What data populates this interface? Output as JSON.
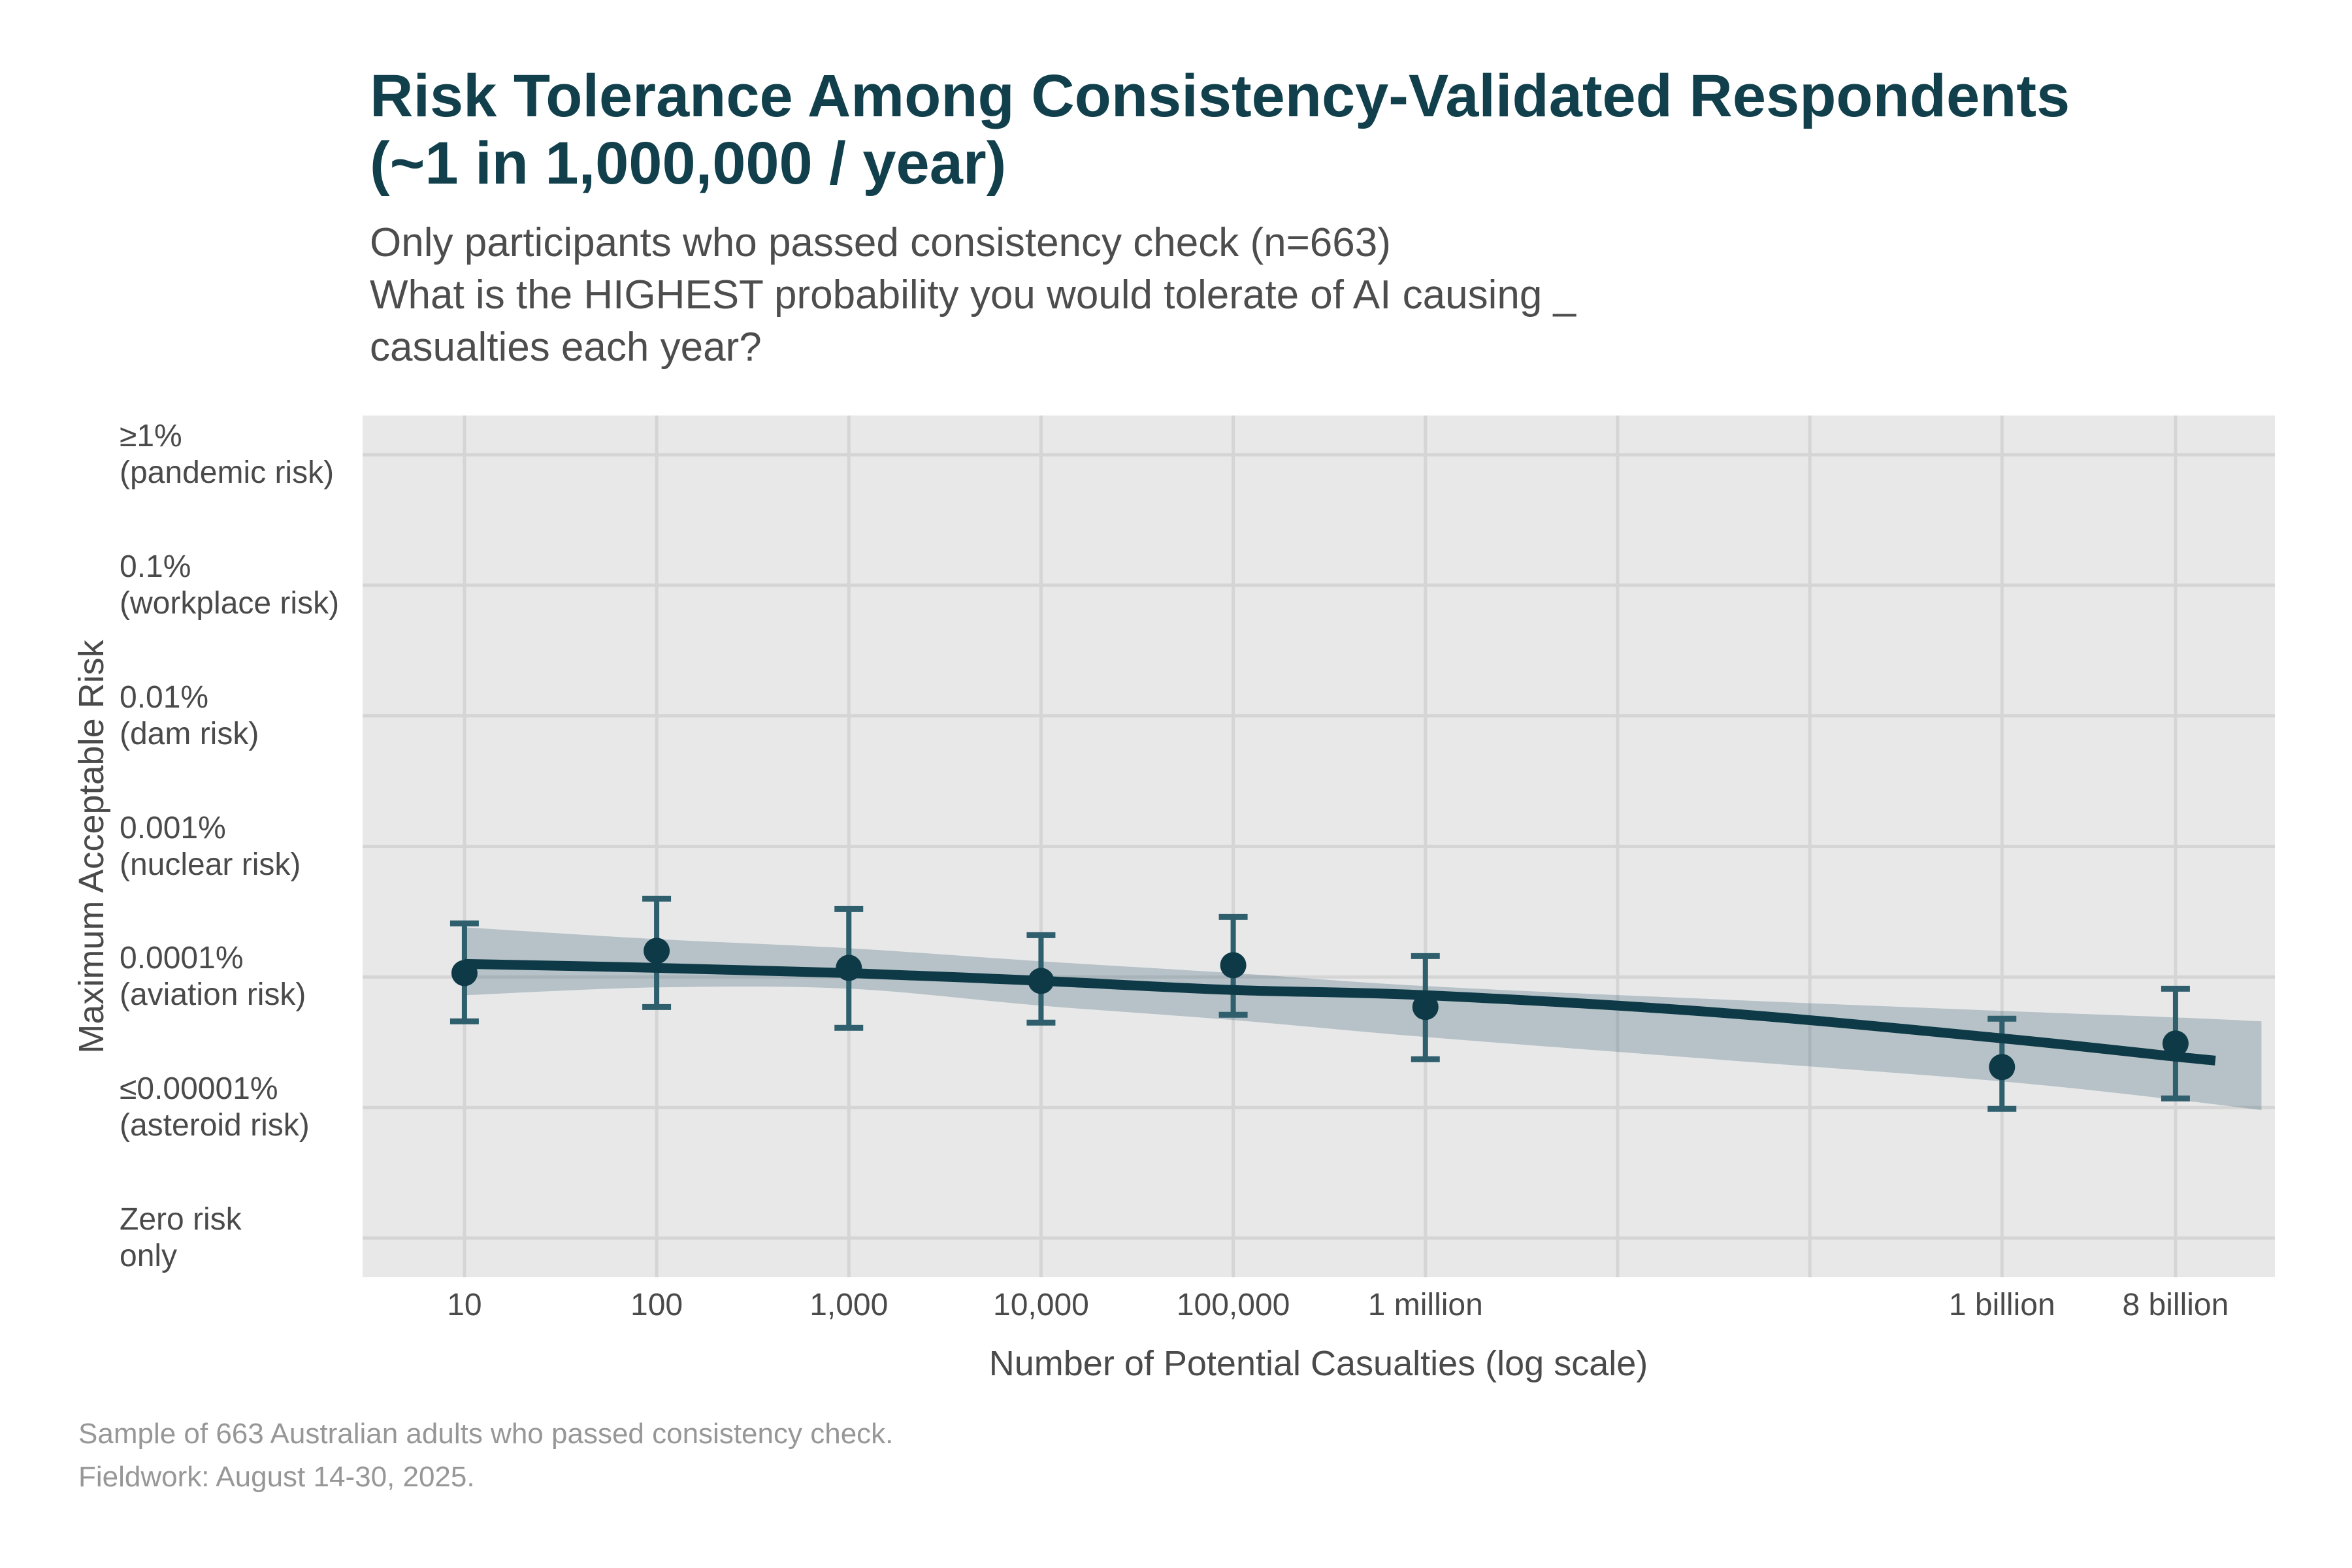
{
  "title": {
    "line1": "Risk Tolerance Among Consistency-Validated Respondents",
    "line2": "(~1 in 1,000,000 / year)"
  },
  "subtitle": {
    "line1": "Only participants who passed consistency check (n=663)",
    "line2": "What is the HIGHEST probability you would tolerate of AI causing _",
    "line3": "casualties each year?"
  },
  "footer": {
    "line1": "Sample of 663 Australian adults who passed consistency check.",
    "line2": "Fieldwork: August 14-30, 2025."
  },
  "colors": {
    "accent_dark": "#0e3a47",
    "title_text": "#11404c",
    "error_bar": "#2f5f6c",
    "band": "rgba(47,94,107,0.27)",
    "panel_bg": "#e8e8e9",
    "gridline": "#d5d5d6",
    "tick_text": "#4a4a4a",
    "subtitle_text": "#4d4d4d",
    "footer_text": "#979797"
  },
  "chart_data": {
    "type": "line",
    "title": "Risk Tolerance Among Consistency-Validated Respondents (~1 in 1,000,000 / year)",
    "subtitle": "Only participants who passed consistency check (n=663). What is the HIGHEST probability you would tolerate of AI causing _ casualties each year?",
    "xlabel": "Number of Potential Casualties (log scale)",
    "ylabel": "Maximum Acceptable Risk",
    "x_casualties": [
      10,
      100,
      1000,
      10000,
      100000,
      1000000,
      1000000000,
      8000000000
    ],
    "x_log10": [
      1,
      2,
      3,
      4,
      5,
      6,
      9,
      9.903
    ],
    "x_tick_labels": [
      "10",
      "100",
      "1,000",
      "10,000",
      "100,000",
      "1 million",
      "1 billion",
      "8 billion"
    ],
    "grid_x_log10": [
      1,
      2,
      3,
      4,
      5,
      6,
      7,
      8,
      9,
      9.903
    ],
    "y_tick_log10": [
      -2,
      -3,
      -4,
      -5,
      -6,
      -7,
      -8
    ],
    "y_tick_labels": [
      [
        "≥1%",
        "(pandemic risk)"
      ],
      [
        "0.1%",
        "(workplace risk)"
      ],
      [
        "0.01%",
        "(dam risk)"
      ],
      [
        "0.001%",
        "(nuclear risk)"
      ],
      [
        "0.0001%",
        "(aviation risk)"
      ],
      [
        "≤0.00001%",
        "(asteroid risk)"
      ],
      [
        "Zero risk",
        "only"
      ]
    ],
    "y_unit": "log10 of maximum acceptable annual probability (-6 = 0.0001%)",
    "points_log10": [
      -5.97,
      -5.8,
      -5.93,
      -6.03,
      -5.91,
      -6.23,
      -6.69,
      -6.51
    ],
    "err_high_log10": [
      -5.59,
      -5.4,
      -5.48,
      -5.68,
      -5.54,
      -5.84,
      -6.32,
      -6.09
    ],
    "err_low_log10": [
      -6.34,
      -6.23,
      -6.39,
      -6.35,
      -6.29,
      -6.63,
      -7.01,
      -6.93
    ],
    "trend": {
      "x_log10": [
        1,
        2,
        3,
        4,
        5,
        6,
        7.5,
        9,
        9.903,
        10.11
      ],
      "y_log10": [
        -5.9,
        -5.93,
        -5.97,
        -6.03,
        -6.1,
        -6.14,
        -6.27,
        -6.47,
        -6.61,
        -6.64
      ]
    },
    "band": {
      "x_log10": [
        1,
        2,
        3,
        4,
        5,
        6,
        7.5,
        9,
        9.903,
        10.35
      ],
      "upper_log10": [
        -5.62,
        -5.71,
        -5.78,
        -5.88,
        -5.97,
        -6.07,
        -6.17,
        -6.26,
        -6.31,
        -6.34
      ],
      "lower_log10": [
        -6.14,
        -6.08,
        -6.09,
        -6.22,
        -6.33,
        -6.46,
        -6.63,
        -6.8,
        -6.94,
        -7.02
      ]
    },
    "xlim_log10": [
      0.47,
      10.42
    ],
    "ylim_log10": [
      -8.3,
      -1.7
    ],
    "grid": true,
    "legend": false
  }
}
